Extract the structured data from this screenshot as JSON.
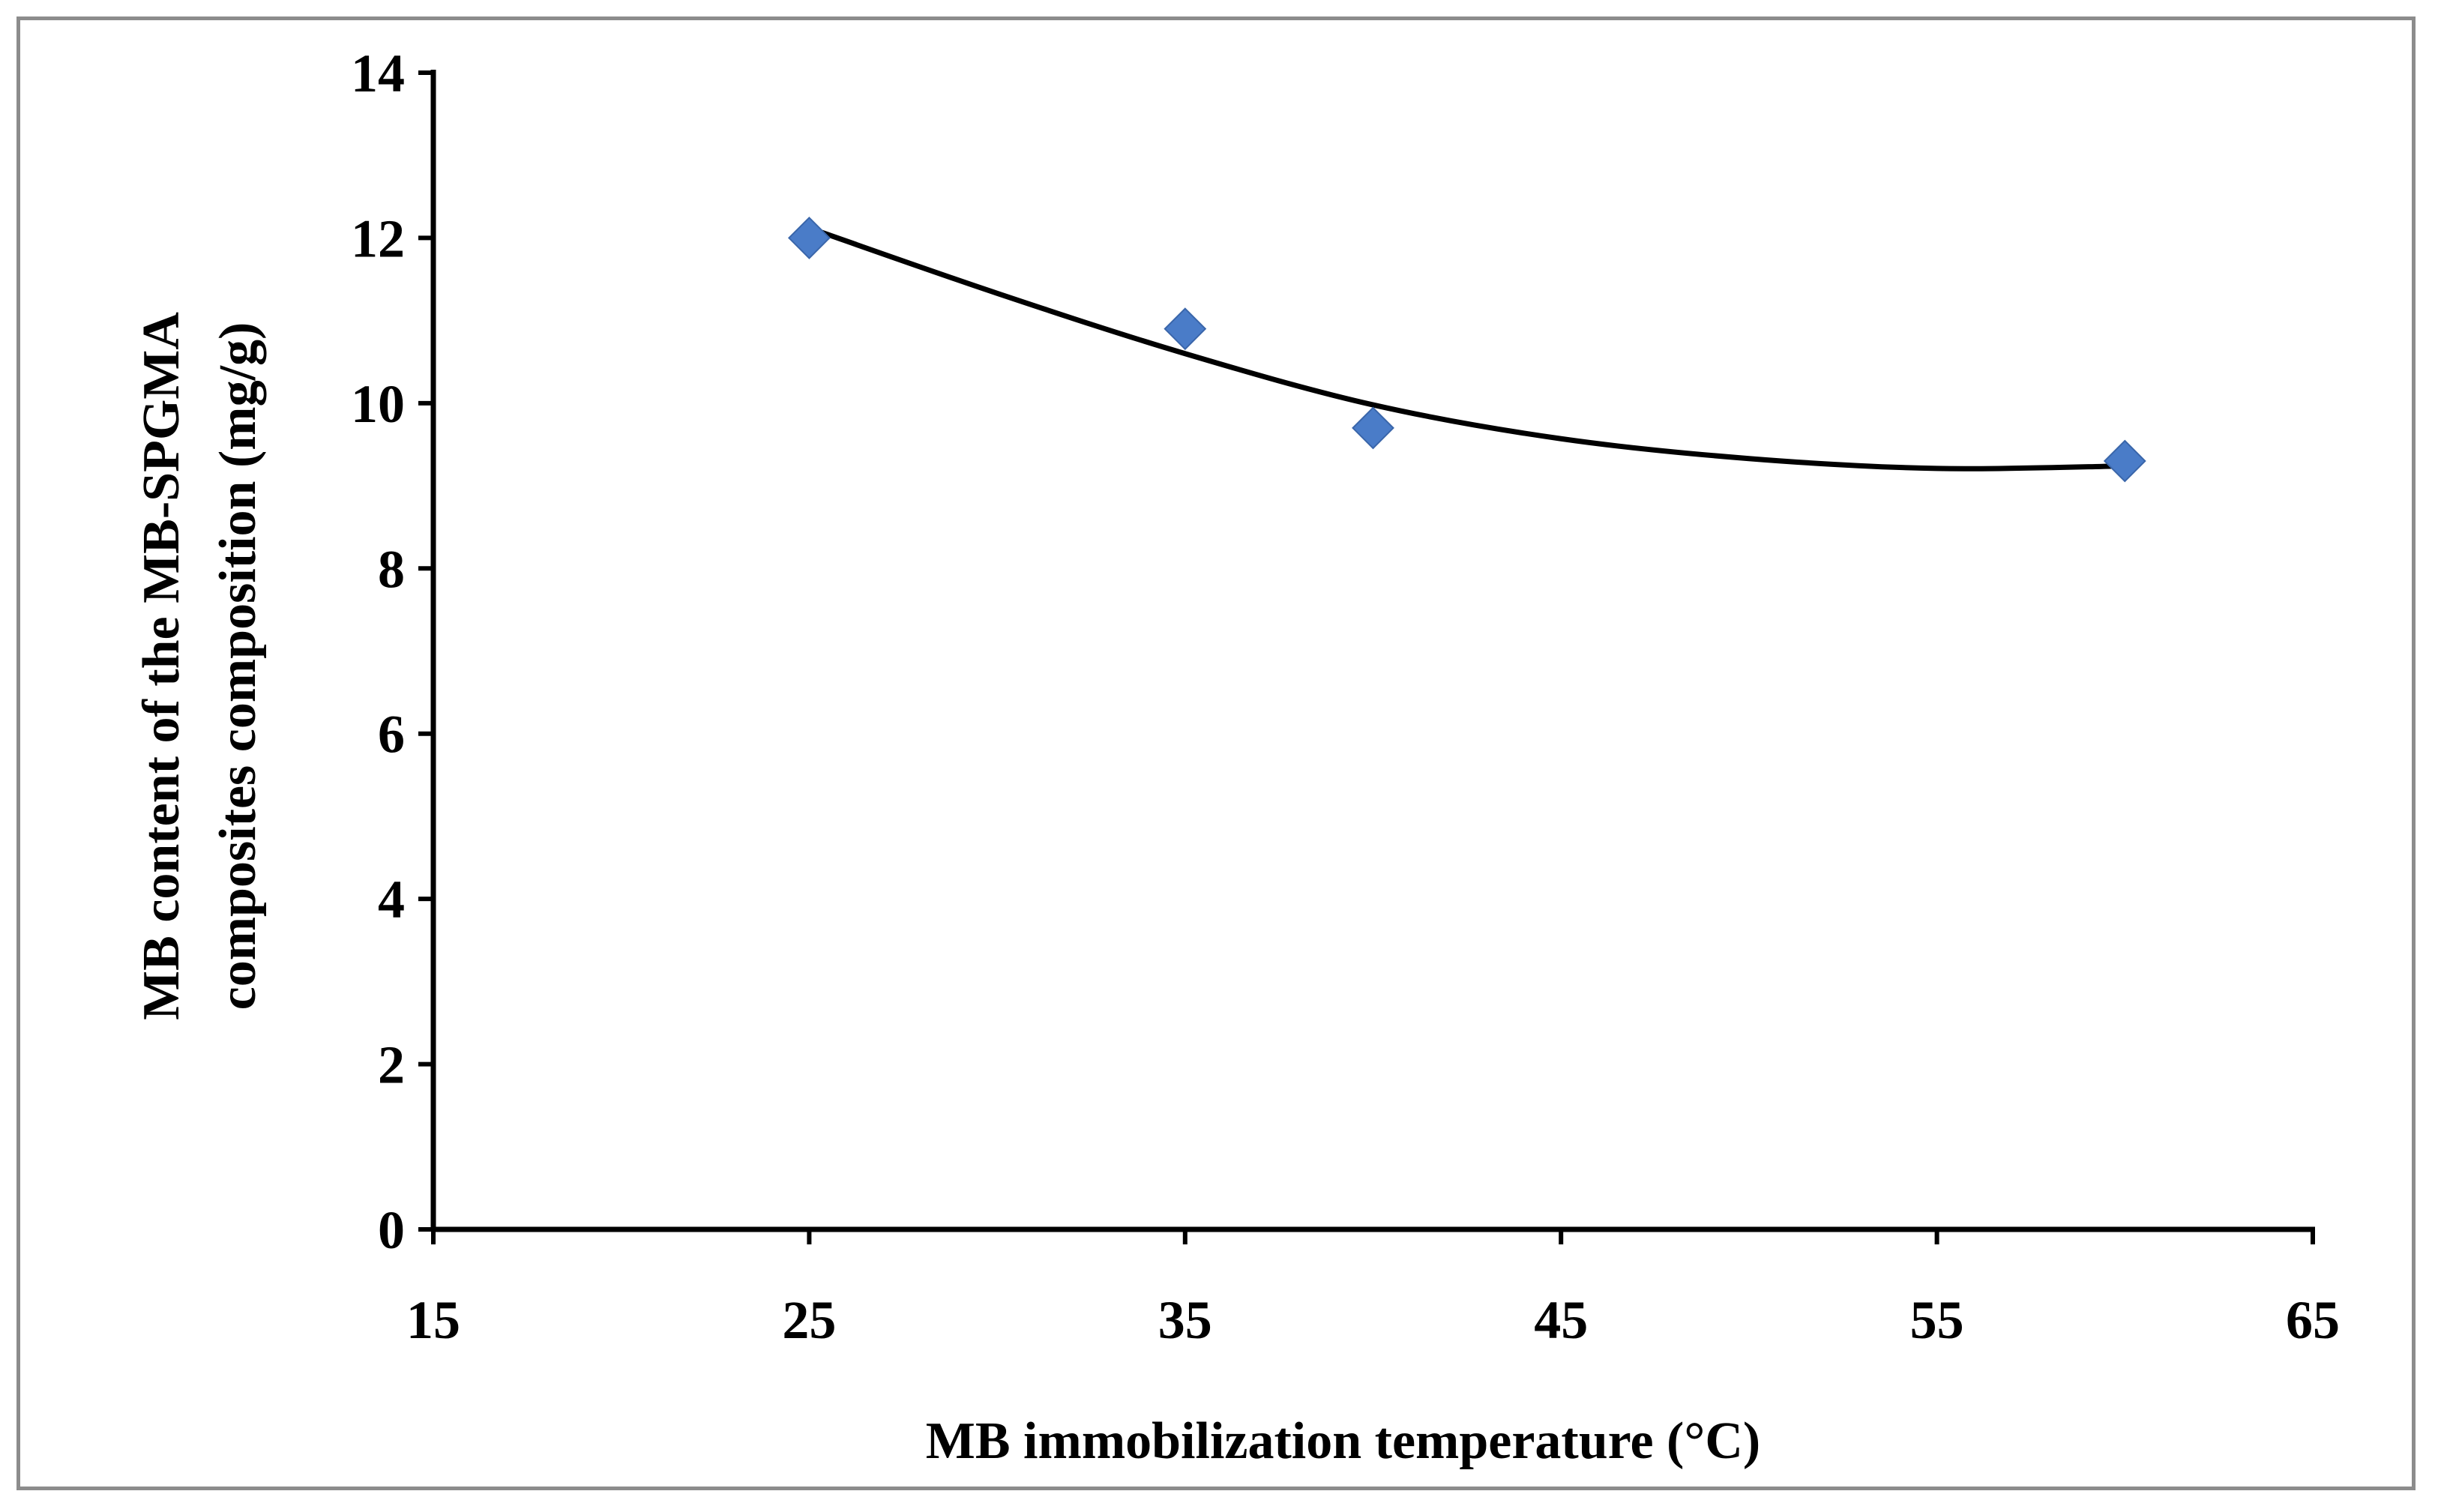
{
  "chart_data": {
    "type": "scatter",
    "title": "",
    "xlabel": "MB immobilization temperature (°C)",
    "ylabel_lines": [
      "MB content of the MB-SPGMA",
      "composites composition (mg/g)"
    ],
    "xlim": [
      15,
      65
    ],
    "ylim": [
      0,
      14
    ],
    "xticks": [
      15,
      25,
      35,
      45,
      55,
      65
    ],
    "yticks": [
      0,
      2,
      4,
      6,
      8,
      10,
      12,
      14
    ],
    "series": [
      {
        "name": "MB content",
        "marker": "diamond",
        "color": "#4a7cc8",
        "x": [
          25,
          35,
          40,
          60
        ],
        "y": [
          12.0,
          10.9,
          9.7,
          9.3
        ]
      }
    ],
    "trendline": {
      "type": "polynomial",
      "color": "#000000",
      "x": [
        25,
        30,
        35,
        40,
        45,
        50,
        55,
        60
      ],
      "y": [
        12.12,
        11.33,
        10.6,
        9.98,
        9.57,
        9.33,
        9.21,
        9.24
      ]
    },
    "grid": false,
    "legend": "none"
  }
}
